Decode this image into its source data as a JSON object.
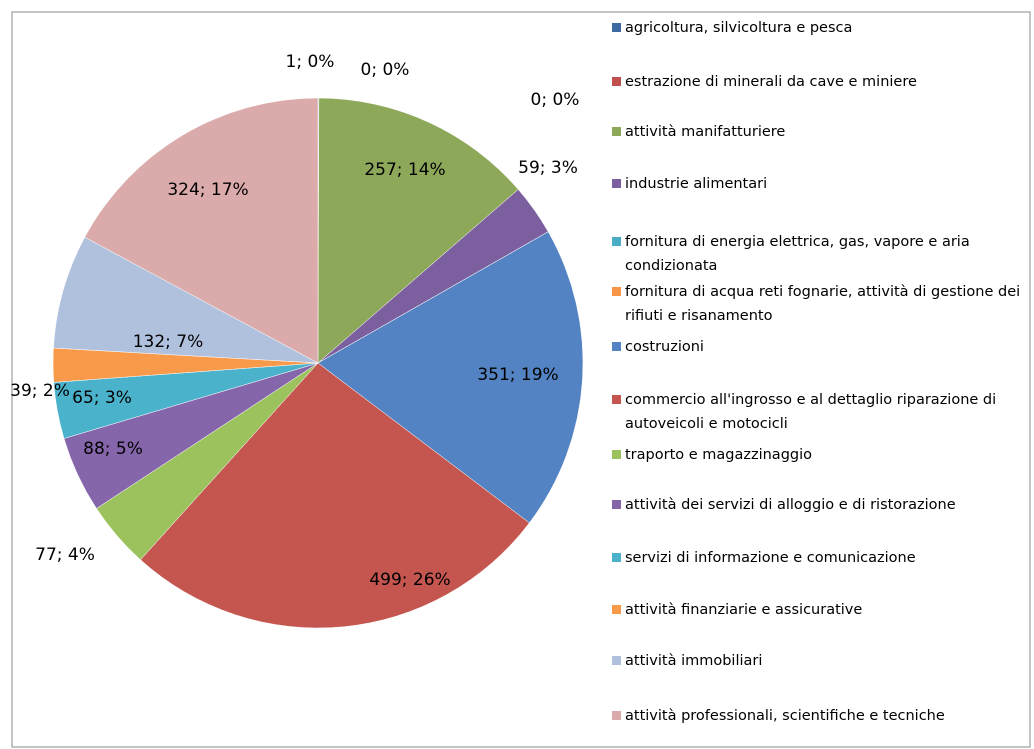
{
  "chart_data": {
    "type": "pie",
    "categories": [
      "agricoltura, silvicoltura e pesca",
      "estrazione di minerali da cave e miniere",
      "attività manifatturiere",
      "industrie alimentari",
      "fornitura di energia elettrica, gas, vapore e aria condizionata",
      "fornitura di acqua reti fognarie, attività di gestione dei rifiuti e risanamento",
      "costruzioni",
      "commercio all'ingrosso e al dettaglio riparazione di autoveicoli e motocicli",
      "traporto e magazzinaggio",
      "attività dei servizi di alloggio e di ristorazione",
      "servizi di informazione e comunicazione",
      "attività finanziarie e assicurative",
      "attività immobiliari",
      "attività professionali, scientifiche e tecniche"
    ],
    "values": [
      1,
      0,
      257,
      59,
      0,
      null,
      351,
      499,
      77,
      88,
      65,
      39,
      132,
      324
    ],
    "value_labels": [
      "1; 0%",
      "0; 0%",
      "257; 14%",
      "59; 3%",
      "0; 0%",
      null,
      "351; 19%",
      "499; 26%",
      "77; 4%",
      "88; 5%",
      "65; 3%",
      "39; 2%",
      "132; 7%",
      "324; 17%"
    ],
    "colors": [
      "#3d6aa0",
      "#c0504d",
      "#8ea85a",
      "#7c5f9e",
      "#4bacc6",
      "#f79646",
      "#5383c2",
      "#c4554f",
      "#9bc25d",
      "#8666ab",
      "#4bb2cc",
      "#f89a4a",
      "#b0c1de",
      "#dbaaaa"
    ],
    "legend": "right"
  }
}
